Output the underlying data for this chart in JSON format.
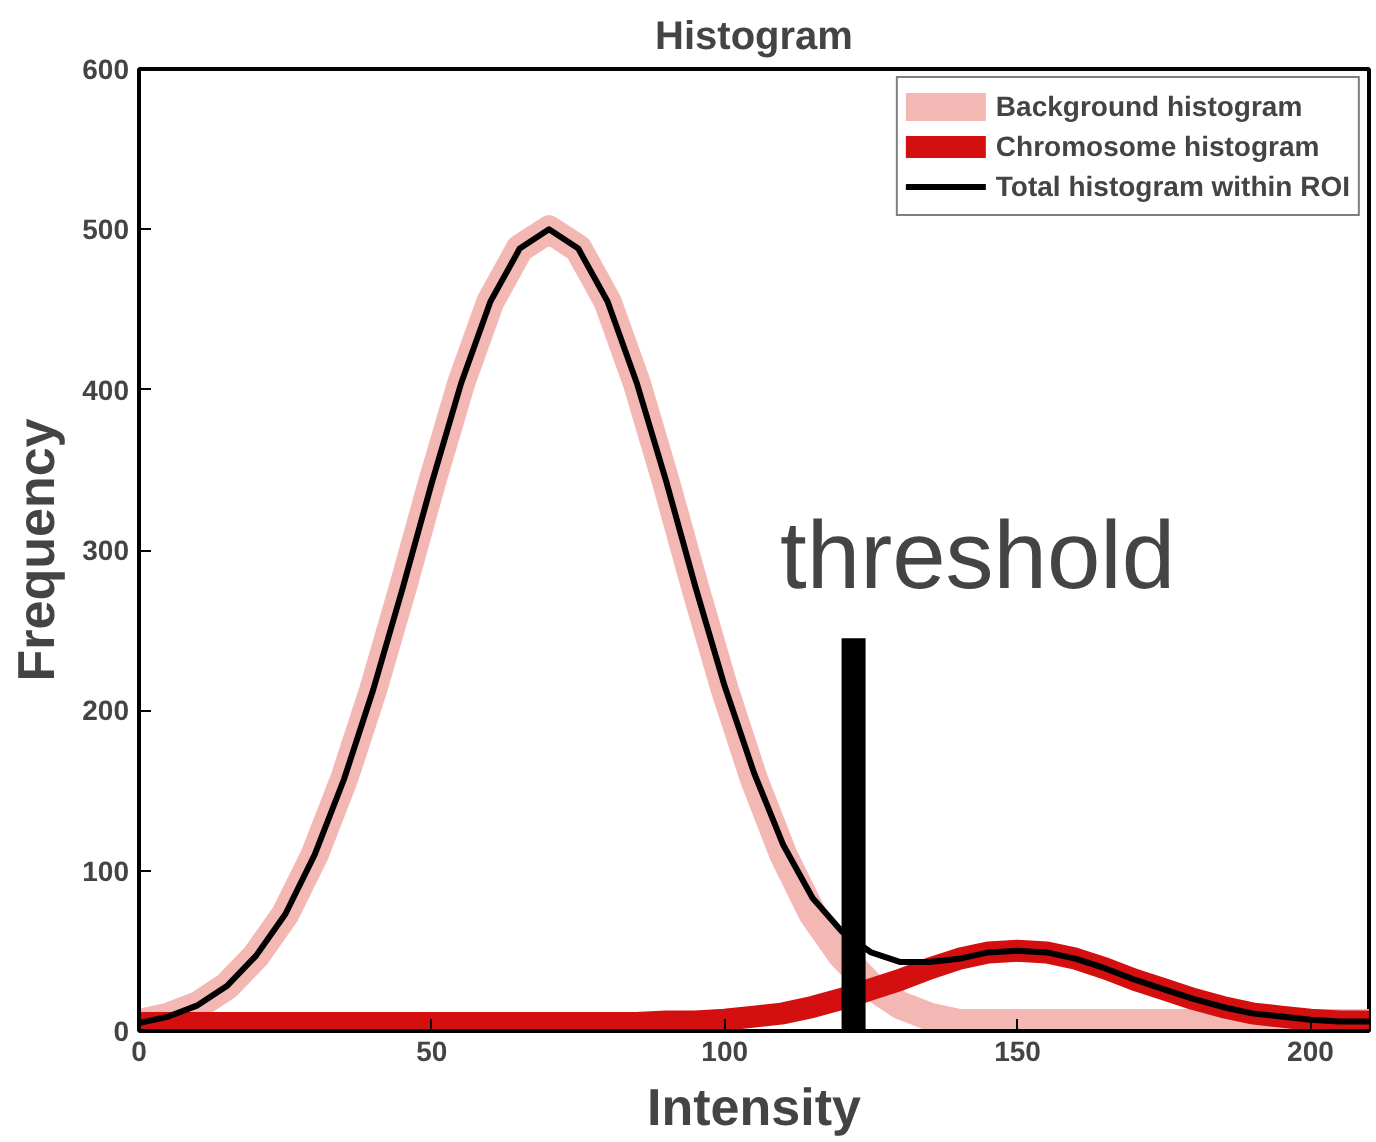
{
  "chart_data": {
    "type": "line",
    "title": "Histogram",
    "xlabel": "Intensity",
    "ylabel": "Frequency",
    "x": [
      0,
      5,
      10,
      15,
      20,
      25,
      30,
      35,
      40,
      45,
      50,
      55,
      60,
      65,
      70,
      75,
      80,
      85,
      90,
      95,
      100,
      105,
      110,
      115,
      120,
      125,
      130,
      135,
      140,
      145,
      150,
      155,
      160,
      165,
      170,
      175,
      180,
      185,
      190,
      195,
      200,
      205,
      210
    ],
    "xlim": [
      0,
      210
    ],
    "xticks": [
      0,
      50,
      100,
      150,
      200
    ],
    "ylim": [
      0,
      600
    ],
    "yticks": [
      0,
      100,
      200,
      300,
      400,
      500,
      600
    ],
    "grid": false,
    "legend": "top right",
    "marker": "none",
    "line_style": "solid",
    "series": [
      {
        "name": "Background histogram",
        "color": "#f4b8b4",
        "values": [
          5,
          9,
          16,
          28,
          47,
          73,
          110,
          157,
          213,
          276,
          342,
          404,
          455,
          488,
          500,
          488,
          455,
          404,
          342,
          276,
          213,
          157,
          110,
          73,
          47,
          28,
          16,
          9,
          5,
          5,
          5,
          5,
          5,
          5,
          5,
          5,
          5,
          5,
          5,
          5,
          5,
          5,
          5
        ]
      },
      {
        "name": "Chromosome histogram",
        "color": "#d40f0f",
        "values": [
          5,
          5,
          5,
          5,
          5,
          5,
          5,
          5,
          5,
          5,
          5,
          5,
          5,
          5,
          5,
          5,
          5,
          5,
          6,
          6,
          7,
          9,
          11,
          15,
          20,
          26,
          32,
          39,
          45,
          49,
          50,
          49,
          45,
          39,
          32,
          26,
          20,
          15,
          11,
          9,
          7,
          6,
          6
        ]
      },
      {
        "name": "Total histogram within ROI",
        "color": "#000000",
        "values": [
          5,
          9,
          16,
          28,
          47,
          73,
          110,
          157,
          213,
          276,
          342,
          404,
          455,
          488,
          500,
          488,
          455,
          404,
          343,
          277,
          215,
          161,
          116,
          83,
          62,
          49,
          43,
          43,
          45,
          49,
          50,
          49,
          45,
          39,
          32,
          26,
          20,
          15,
          11,
          9,
          7,
          6,
          6
        ]
      },
      {
        "type": "line",
        "color": "#000000",
        "x": [
          122,
          122
        ],
        "values": [
          0,
          245
        ]
      }
    ],
    "annotations": [
      {
        "text": "threshold",
        "x": 122,
        "y": 245
      }
    ]
  }
}
